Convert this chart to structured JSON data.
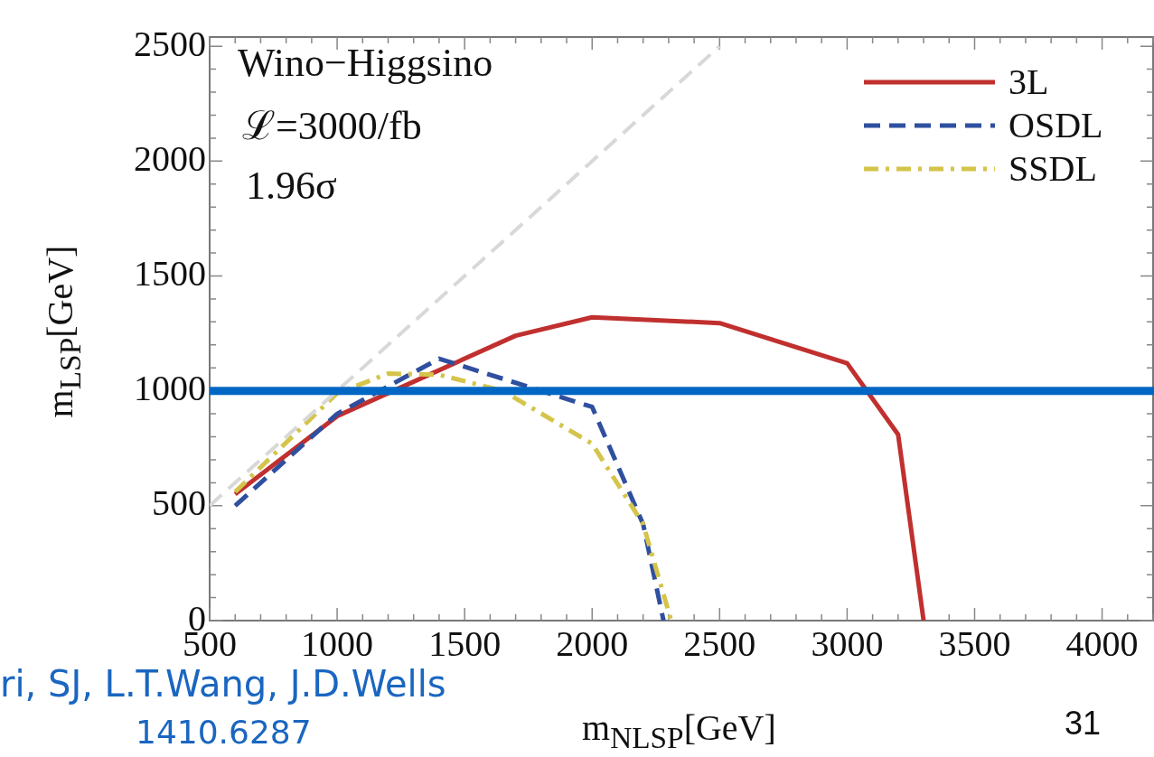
{
  "chart_data": {
    "type": "line",
    "xlabel": "m$_{NLSP}$[GeV]",
    "ylabel": "m$_{LSP}$[GeV]",
    "xlim": [
      500,
      4200
    ],
    "xticks": [
      500,
      1000,
      1500,
      2000,
      2500,
      3000,
      3500,
      4000
    ],
    "ylim": [
      0,
      2540
    ],
    "yticks": [
      0,
      500,
      1000,
      1500,
      2000,
      2500
    ],
    "grid": false,
    "legend": "top right",
    "marker": "none",
    "series": [
      {
        "name": "3L",
        "color": "#c0302f",
        "line_style": "solid",
        "x": [
          600,
          1000,
          1700,
          2000,
          2500,
          3000,
          3200,
          3300
        ],
        "values": [
          550,
          890,
          1240,
          1320,
          1295,
          1120,
          810,
          0
        ]
      },
      {
        "name": "OSDL",
        "color": "#2f4f9f",
        "line_style": "dashed",
        "x": [
          600,
          1000,
          1400,
          2000,
          2200,
          2280
        ],
        "values": [
          500,
          900,
          1140,
          930,
          420,
          0
        ]
      },
      {
        "name": "SSDL",
        "color": "#d4c44a",
        "line_style": "dashdot",
        "x": [
          600,
          1000,
          1200,
          1400,
          1650,
          2000,
          2200,
          2310
        ],
        "values": [
          560,
          990,
          1075,
          1070,
          1000,
          770,
          420,
          0
        ]
      },
      {
        "color": "#d8d8d8",
        "line_style": "dashed",
        "x": [
          500,
          2500
        ],
        "values": [
          500,
          2500
        ]
      }
    ],
    "ref_lines": [
      {
        "axis": "y",
        "value": 1000,
        "color": "#0066c4"
      }
    ],
    "annotations": [
      "Wino−Higgsino",
      "ℒ=3000/fb",
      "1.96σ",
      "ri, SJ, L.T.Wang, J.D.Wells",
      "1410.6287",
      "31"
    ]
  }
}
